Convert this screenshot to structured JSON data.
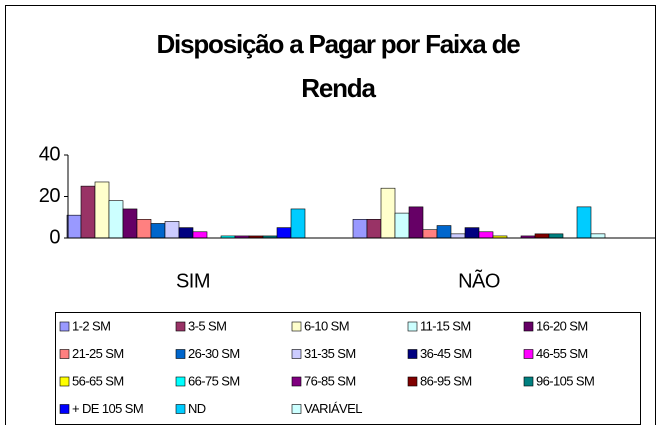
{
  "chart_data": {
    "type": "bar",
    "title": [
      "Disposição a Pagar por Faixa de",
      "Renda"
    ],
    "categories": [
      "SIM",
      "NÃO"
    ],
    "ylim": [
      0,
      40
    ],
    "yticks": [
      0,
      20,
      40
    ],
    "grid": false,
    "legend": "bottom",
    "series": [
      {
        "name": "1-2 SM",
        "color": "#9999FF",
        "values": [
          11,
          9
        ]
      },
      {
        "name": "3-5 SM",
        "color": "#993366",
        "values": [
          25,
          9
        ]
      },
      {
        "name": "6-10 SM",
        "color": "#FFFFCC",
        "values": [
          27,
          24
        ]
      },
      {
        "name": "11-15 SM",
        "color": "#CCFFFF",
        "values": [
          18,
          12
        ]
      },
      {
        "name": "16-20 SM",
        "color": "#660066",
        "values": [
          14,
          15
        ]
      },
      {
        "name": "21-25 SM",
        "color": "#FF8080",
        "values": [
          9,
          4
        ]
      },
      {
        "name": "26-30 SM",
        "color": "#0066CC",
        "values": [
          7,
          6
        ]
      },
      {
        "name": "31-35 SM",
        "color": "#CCCCFF",
        "values": [
          8,
          2
        ]
      },
      {
        "name": "36-45 SM",
        "color": "#000080",
        "values": [
          5,
          5
        ]
      },
      {
        "name": "46-55 SM",
        "color": "#FF00FF",
        "values": [
          3,
          3
        ]
      },
      {
        "name": "56-65 SM",
        "color": "#FFFF00",
        "values": [
          0,
          1
        ]
      },
      {
        "name": "66-75 SM",
        "color": "#00FFFF",
        "values": [
          1,
          0
        ]
      },
      {
        "name": "76-85 SM",
        "color": "#800080",
        "values": [
          1,
          1
        ]
      },
      {
        "name": "86-95 SM",
        "color": "#800000",
        "values": [
          1,
          2
        ]
      },
      {
        "name": "96-105 SM",
        "color": "#008080",
        "values": [
          1,
          2
        ]
      },
      {
        "name": "+ DE 105 SM",
        "color": "#0000FF",
        "values": [
          5,
          0
        ]
      },
      {
        "name": "ND",
        "color": "#00CCFF",
        "values": [
          14,
          15
        ]
      },
      {
        "name": "VARIÁVEL",
        "color": "#CCFFFF",
        "values": [
          0,
          2
        ]
      }
    ]
  }
}
